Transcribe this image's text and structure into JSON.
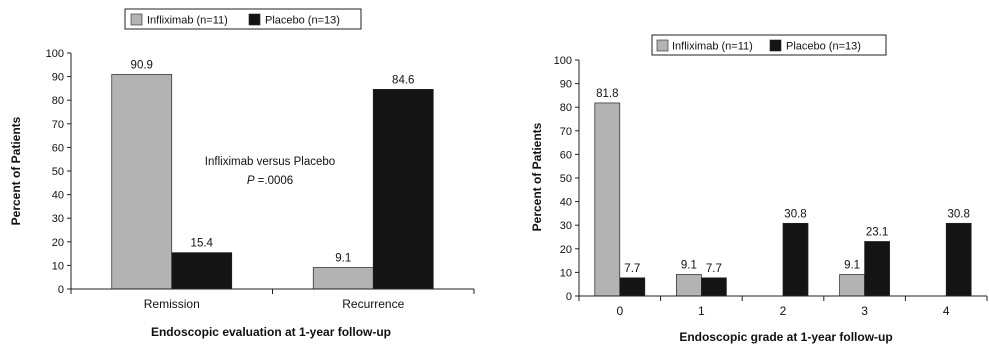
{
  "colors": {
    "infliximab": "#b3b3b3",
    "placebo": "#141414",
    "axis": "#222222"
  },
  "chart_data": [
    {
      "type": "bar",
      "categories": [
        "Remission",
        "Recurrence"
      ],
      "series": [
        {
          "name": "Infliximab (n=11)",
          "values": [
            90.9,
            9.1
          ],
          "labels": [
            "90.9",
            "9.1"
          ]
        },
        {
          "name": "Placebo (n=13)",
          "values": [
            15.4,
            84.6
          ],
          "labels": [
            "15.4",
            "84.6"
          ]
        }
      ],
      "ylim": [
        0,
        100
      ],
      "yticks": [
        "0",
        "10",
        "20",
        "30",
        "40",
        "50",
        "60",
        "70",
        "80",
        "90",
        "100"
      ],
      "xlabel": "Endoscopic evaluation at 1-year follow-up",
      "ylabel": "Percent of Patients",
      "annotation": {
        "line1": "Infliximab versus Placebo",
        "line2_p": "P",
        "line2_rest": " =.0006"
      },
      "legend_position": "top",
      "grid": false
    },
    {
      "type": "bar",
      "categories": [
        "0",
        "1",
        "2",
        "3",
        "4"
      ],
      "series": [
        {
          "name": "Infliximab (n=11)",
          "values": [
            81.8,
            9.1,
            0,
            9.1,
            0
          ],
          "labels": [
            "81.8",
            "9.1",
            "",
            "9.1",
            ""
          ]
        },
        {
          "name": "Placebo (n=13)",
          "values": [
            7.7,
            7.7,
            30.8,
            23.1,
            30.8
          ],
          "labels": [
            "7.7",
            "7.7",
            "30.8",
            "23.1",
            "30.8"
          ]
        }
      ],
      "ylim": [
        0,
        100
      ],
      "yticks": [
        "0",
        "10",
        "20",
        "30",
        "40",
        "50",
        "60",
        "70",
        "80",
        "90",
        "100"
      ],
      "xlabel": "Endoscopic grade at 1-year follow-up",
      "ylabel": "Percent of Patients",
      "legend_position": "top",
      "grid": false
    }
  ]
}
